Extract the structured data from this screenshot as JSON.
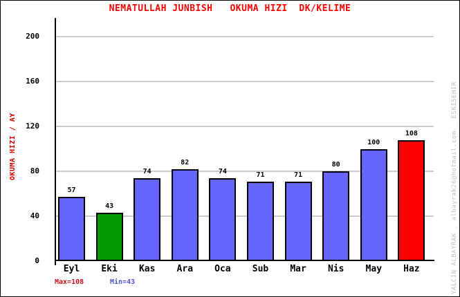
{
  "title": "NEMATULLAH JUNBISH   OKUMA HIZI  DK/KELIME",
  "watermark": "YALCIN ALBAYRAK _ albayrak26@hotmail.com _ ESKISEHIR",
  "annotations": {
    "max_label": "Max=108",
    "min_label": "Min=43"
  },
  "colors": {
    "title": "#ff0000",
    "ylabel": "#dd0000",
    "bar_default": "#6666ff",
    "bar_min": "#009900",
    "bar_max": "#ff0000",
    "bar_border": "#000000",
    "gridline": "#cccccc",
    "axis": "#000000",
    "max_label": "#cc1122",
    "min_label": "#5555cc",
    "watermark": "#c3c3c3"
  },
  "chart_data": {
    "type": "bar",
    "title": "NEMATULLAH JUNBISH   OKUMA HIZI  DK/KELIME",
    "xlabel": "",
    "ylabel": "OKUMA HIZI / AY",
    "categories": [
      "Eyl",
      "Eki",
      "Kas",
      "Ara",
      "Oca",
      "Sub",
      "Mar",
      "Nis",
      "May",
      "Haz"
    ],
    "values": [
      57,
      43,
      74,
      82,
      74,
      71,
      71,
      80,
      100,
      108
    ],
    "bar_colors": [
      "#6666ff",
      "#009900",
      "#6666ff",
      "#6666ff",
      "#6666ff",
      "#6666ff",
      "#6666ff",
      "#6666ff",
      "#6666ff",
      "#ff0000"
    ],
    "yticks": [
      0,
      40,
      80,
      120,
      160,
      200
    ],
    "ylim": [
      0,
      216
    ],
    "grid": "horizontal",
    "legend": null,
    "max_value": 108,
    "min_value": 43
  }
}
